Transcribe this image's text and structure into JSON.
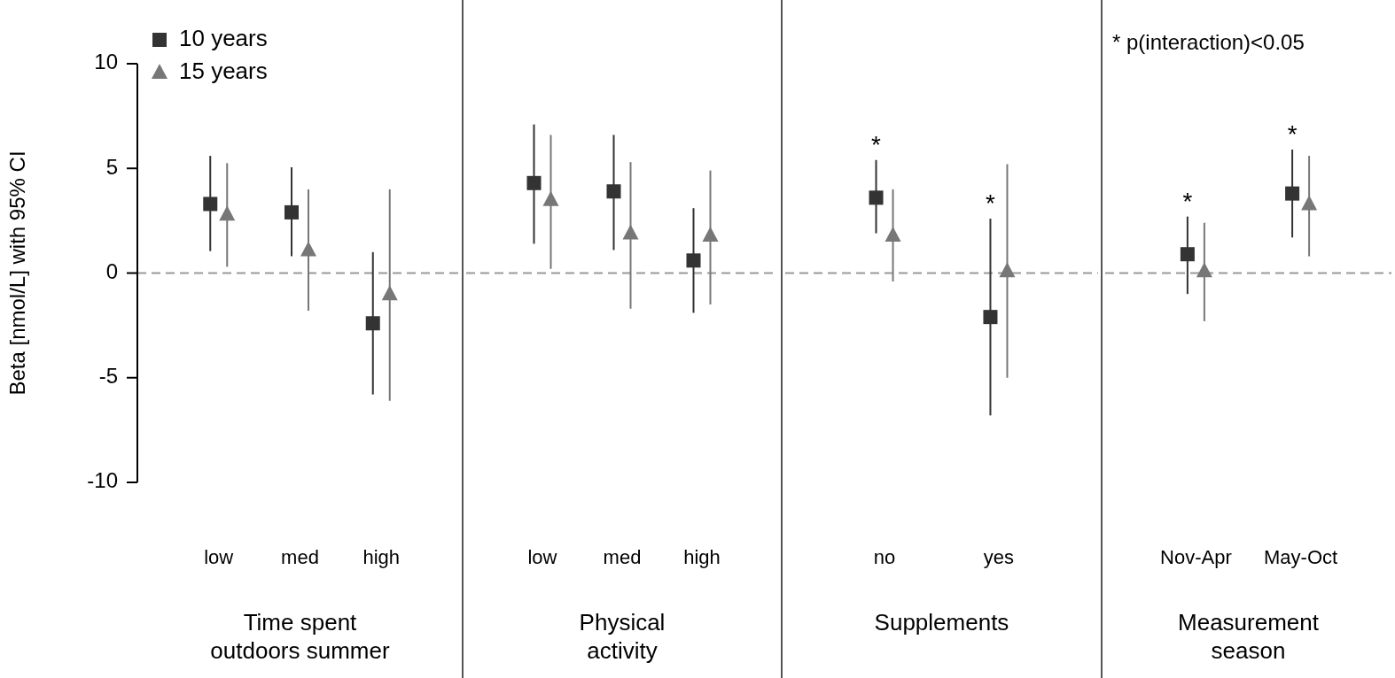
{
  "chart_data": [
    {
      "type": "scatter",
      "xlabel": "Time spent\noutdoors summer",
      "ylabel": "Beta [nmol/L] with 95% CI",
      "categories": [
        "low",
        "med",
        "high"
      ],
      "ylim": [
        -10,
        10
      ],
      "yticks": [
        -10,
        -5,
        0,
        5,
        10
      ],
      "legend": "top left",
      "grid": false,
      "series": [
        {
          "name": "10 years",
          "color": "#333333",
          "marker": "square",
          "values": [
            3.3,
            2.9,
            -2.4
          ],
          "errors": [
            [
              1.05,
              5.6
            ],
            [
              0.8,
              5.05
            ],
            [
              -5.8,
              1.0
            ]
          ]
        },
        {
          "name": "15 years",
          "color": "#777777",
          "marker": "triangle",
          "values": [
            2.8,
            1.1,
            -1.0
          ],
          "errors": [
            [
              0.3,
              5.25
            ],
            [
              -1.8,
              4.0
            ],
            [
              -6.1,
              4.0
            ]
          ]
        }
      ],
      "ref_lines": [
        {
          "axis": "y",
          "value": 0,
          "color": "#999999",
          "line_style": "dashed"
        }
      ]
    },
    {
      "type": "scatter",
      "xlabel": "Physical\nactivity",
      "categories": [
        "low",
        "med",
        "high"
      ],
      "ylim": [
        -10,
        10
      ],
      "tick_labels": "x",
      "legend": false,
      "grid": false,
      "series": [
        {
          "color": "#333333",
          "marker": "square",
          "values": [
            4.3,
            3.9,
            0.6
          ],
          "errors": [
            [
              1.4,
              7.1
            ],
            [
              1.1,
              6.6
            ],
            [
              -1.9,
              3.1
            ]
          ]
        },
        {
          "color": "#777777",
          "marker": "triangle",
          "values": [
            3.5,
            1.9,
            1.8
          ],
          "errors": [
            [
              0.2,
              6.6
            ],
            [
              -1.7,
              5.3
            ],
            [
              -1.5,
              4.9
            ]
          ]
        }
      ],
      "ref_lines": [
        {
          "axis": "y",
          "value": 0,
          "color": "#999999",
          "line_style": "dashed"
        }
      ]
    },
    {
      "type": "scatter",
      "xlabel": "Supplements",
      "categories": [
        "no",
        "yes"
      ],
      "ylim": [
        -10,
        10
      ],
      "tick_labels": "x",
      "legend": false,
      "grid": false,
      "series": [
        {
          "color": "#333333",
          "marker": "square",
          "values": [
            3.6,
            -2.1
          ],
          "errors": [
            [
              1.9,
              5.4
            ],
            [
              -6.8,
              2.6
            ]
          ]
        },
        {
          "color": "#777777",
          "marker": "triangle",
          "values": [
            1.8,
            0.1
          ],
          "errors": [
            [
              -0.4,
              4.0
            ],
            [
              -5.0,
              5.2
            ]
          ]
        }
      ],
      "ref_lines": [
        {
          "axis": "y",
          "value": 0,
          "color": "#999999",
          "line_style": "dashed"
        }
      ],
      "annotations": [
        "*",
        "*"
      ]
    },
    {
      "type": "scatter",
      "xlabel": "Measurement\nseason",
      "categories": [
        "Nov-Apr",
        "May-Oct"
      ],
      "ylim": [
        -10,
        10
      ],
      "tick_labels": "x",
      "legend": false,
      "grid": false,
      "series": [
        {
          "color": "#333333",
          "marker": "square",
          "values": [
            0.9,
            3.8
          ],
          "errors": [
            [
              -1.0,
              2.7
            ],
            [
              1.7,
              5.9
            ]
          ]
        },
        {
          "color": "#777777",
          "marker": "triangle",
          "values": [
            0.1,
            3.3
          ],
          "errors": [
            [
              -2.3,
              2.4
            ],
            [
              0.8,
              5.6
            ]
          ]
        }
      ],
      "ref_lines": [
        {
          "axis": "y",
          "value": 0,
          "color": "#999999",
          "line_style": "dashed"
        }
      ],
      "annotations": [
        "*",
        "*",
        "* p(interaction)<0.05"
      ]
    }
  ]
}
